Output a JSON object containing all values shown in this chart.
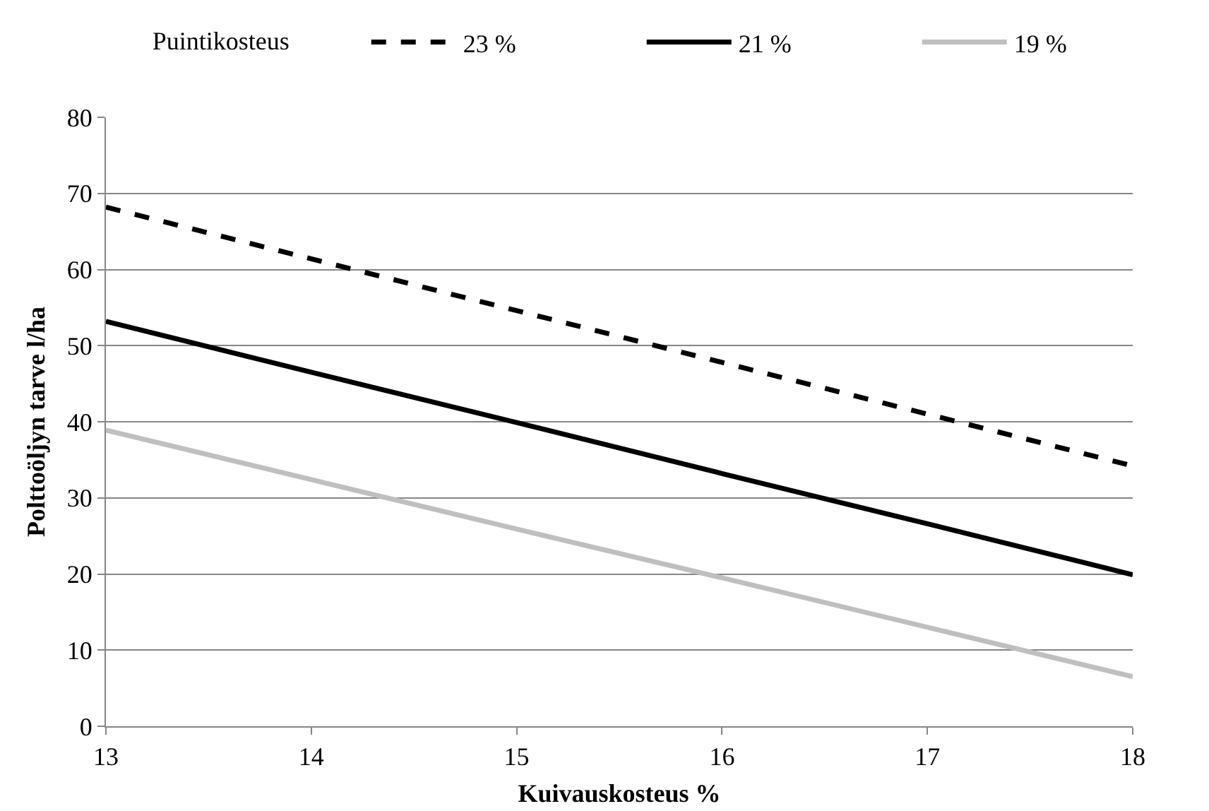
{
  "chart_data": {
    "type": "line",
    "xlabel": "Kuivauskosteus %",
    "ylabel": "Polttoöljyn tarve l/ha",
    "legend_title": "Puintikosteus",
    "x": [
      13,
      14,
      15,
      16,
      17,
      18
    ],
    "series": [
      {
        "name": "23 %",
        "color": "#000000",
        "line_style": "dashed",
        "values": [
          68.2,
          61.4,
          54.6,
          47.8,
          41.0,
          34.2
        ]
      },
      {
        "name": "21 %",
        "color": "#000000",
        "line_style": "solid",
        "values": [
          53.2,
          46.5,
          39.9,
          33.2,
          26.6,
          19.9
        ]
      },
      {
        "name": "19 %",
        "color": "#bfbfbf",
        "line_style": "solid",
        "values": [
          38.9,
          32.4,
          25.9,
          19.5,
          13.0,
          6.5
        ]
      }
    ],
    "xlim": [
      13,
      18
    ],
    "xticks": [
      13,
      14,
      15,
      16,
      17,
      18
    ],
    "ylim": [
      0,
      80
    ],
    "yticks": [
      0,
      10,
      20,
      30,
      40,
      50,
      60,
      70,
      80
    ],
    "grid": "y",
    "legend": "top",
    "marker": "none"
  }
}
